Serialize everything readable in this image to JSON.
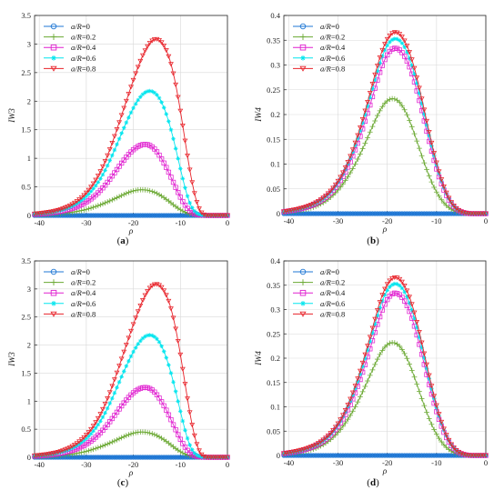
{
  "figure": {
    "panels": [
      {
        "id": "a",
        "caption": "(a)",
        "caption_letter": "a"
      },
      {
        "id": "b",
        "caption": "(b)",
        "caption_letter": "b"
      },
      {
        "id": "c",
        "caption": "(c)",
        "caption_letter": "c"
      },
      {
        "id": "d",
        "caption": "(d)",
        "caption_letter": "d"
      }
    ]
  },
  "colors": {
    "aR0": "#1f77d4",
    "aR02": "#6aa832",
    "aR04": "#e020d0",
    "aR06": "#00e5ee",
    "aR08": "#e8232a",
    "grid": "#d9d9d9",
    "axis": "#262626"
  },
  "chart_data": [
    {
      "panel": "a",
      "type": "line",
      "xlabel": "ρ",
      "ylabel": "IW3",
      "xlim": [
        -41,
        0
      ],
      "ylim": [
        0,
        3.5
      ],
      "xticks": [
        -40,
        -30,
        -20,
        -10,
        0
      ],
      "yticks": [
        0,
        0.5,
        1,
        1.5,
        2,
        2.5,
        3,
        3.5
      ],
      "xtick_labels": [
        "-40",
        "-30",
        "-20",
        "-10",
        "0"
      ],
      "ytick_labels": [
        "0",
        "0.5",
        "1",
        "1.5",
        "2",
        "2.5",
        "3",
        "3.5"
      ],
      "grid": true,
      "legend_position": "top-left",
      "x": [
        -41,
        -38,
        -35,
        -32,
        -29,
        -26,
        -23,
        -20,
        -18,
        -16,
        -14,
        -12,
        -10,
        -8,
        -6,
        -4,
        -2,
        0
      ],
      "series": [
        {
          "name": "a/R=0",
          "name_italic": "a/R",
          "name_rest": "=0",
          "marker": "circle",
          "color_key": "aR0",
          "values": [
            0,
            0,
            0,
            0,
            0,
            0,
            0,
            0,
            0,
            0,
            0,
            0,
            0,
            0,
            0,
            0,
            0,
            0
          ]
        },
        {
          "name": "a/R=0.2",
          "name_italic": "a/R",
          "name_rest": "=0.2",
          "marker": "plus",
          "color_key": "aR02",
          "values": [
            0.01,
            0.02,
            0.04,
            0.07,
            0.13,
            0.22,
            0.33,
            0.43,
            0.45,
            0.42,
            0.34,
            0.22,
            0.1,
            0.03,
            0.005,
            0,
            0,
            0
          ]
        },
        {
          "name": "a/R=0.4",
          "name_italic": "a/R",
          "name_rest": "=0.4",
          "marker": "square",
          "color_key": "aR04",
          "values": [
            0.02,
            0.04,
            0.08,
            0.15,
            0.29,
            0.53,
            0.86,
            1.15,
            1.24,
            1.2,
            0.99,
            0.67,
            0.32,
            0.08,
            0.01,
            0,
            0,
            0
          ]
        },
        {
          "name": "a/R=0.6",
          "name_italic": "a/R",
          "name_rest": "=0.6",
          "marker": "star",
          "color_key": "aR06",
          "values": [
            0.03,
            0.05,
            0.1,
            0.21,
            0.42,
            0.79,
            1.34,
            1.88,
            2.12,
            2.17,
            1.98,
            1.5,
            0.82,
            0.22,
            0.02,
            0,
            0,
            0
          ]
        },
        {
          "name": "a/R=0.8",
          "name_italic": "a/R",
          "name_rest": "=0.8",
          "marker": "triangle-down",
          "color_key": "aR08",
          "values": [
            0.03,
            0.06,
            0.12,
            0.25,
            0.5,
            0.95,
            1.63,
            2.37,
            2.8,
            3.06,
            3.03,
            2.65,
            1.83,
            0.8,
            0.12,
            0,
            0,
            0
          ]
        }
      ]
    },
    {
      "panel": "b",
      "type": "line",
      "xlabel": "ρ",
      "ylabel": "IW4",
      "xlim": [
        -41,
        0
      ],
      "ylim": [
        0,
        0.4
      ],
      "xticks": [
        -40,
        -30,
        -20,
        -10,
        0
      ],
      "yticks": [
        0,
        0.05,
        0.1,
        0.15,
        0.2,
        0.25,
        0.3,
        0.35,
        0.4
      ],
      "xtick_labels": [
        "-40",
        "-30",
        "-20",
        "-10",
        "0"
      ],
      "ytick_labels": [
        "0",
        "0.05",
        "0.1",
        "0.15",
        "0.2",
        "0.25",
        "0.3",
        "0.35",
        "0.4"
      ],
      "grid": true,
      "legend_position": "top-left",
      "x": [
        -41,
        -38,
        -35,
        -32,
        -29,
        -26,
        -23,
        -21,
        -19,
        -17,
        -15,
        -13,
        -11,
        -9,
        -7,
        -5,
        -3,
        0
      ],
      "series": [
        {
          "name": "a/R=0",
          "name_italic": "a/R",
          "name_rest": "=0",
          "marker": "circle",
          "color_key": "aR0",
          "values": [
            0,
            0,
            0,
            0,
            0,
            0,
            0,
            0,
            0,
            0,
            0,
            0,
            0,
            0,
            0,
            0,
            0,
            0
          ]
        },
        {
          "name": "a/R=0.2",
          "name_italic": "a/R",
          "name_rest": "=0.2",
          "marker": "plus",
          "color_key": "aR02",
          "values": [
            0.003,
            0.006,
            0.013,
            0.029,
            0.06,
            0.11,
            0.176,
            0.216,
            0.232,
            0.218,
            0.175,
            0.117,
            0.064,
            0.028,
            0.009,
            0.002,
            0,
            0
          ]
        },
        {
          "name": "a/R=0.4",
          "name_italic": "a/R",
          "name_rest": "=0.4",
          "marker": "square",
          "color_key": "aR04",
          "values": [
            0.004,
            0.009,
            0.018,
            0.037,
            0.075,
            0.142,
            0.236,
            0.299,
            0.332,
            0.325,
            0.282,
            0.208,
            0.126,
            0.06,
            0.02,
            0.004,
            0,
            0
          ]
        },
        {
          "name": "a/R=0.6",
          "name_italic": "a/R",
          "name_rest": "=0.6",
          "marker": "star",
          "color_key": "aR06",
          "values": [
            0.004,
            0.009,
            0.019,
            0.039,
            0.08,
            0.152,
            0.252,
            0.318,
            0.351,
            0.344,
            0.299,
            0.222,
            0.137,
            0.066,
            0.022,
            0.004,
            0,
            0
          ]
        },
        {
          "name": "a/R=0.8",
          "name_italic": "a/R",
          "name_rest": "=0.8",
          "marker": "triangle-down",
          "color_key": "aR08",
          "values": [
            0.004,
            0.01,
            0.02,
            0.041,
            0.083,
            0.158,
            0.262,
            0.33,
            0.364,
            0.357,
            0.311,
            0.232,
            0.143,
            0.069,
            0.023,
            0.004,
            0,
            0
          ]
        }
      ]
    },
    {
      "panel": "c",
      "type": "line",
      "xlabel": "ρ",
      "ylabel": "IW3",
      "xlim": [
        -41,
        0
      ],
      "ylim": [
        0,
        3.5
      ],
      "xticks": [
        -40,
        -30,
        -20,
        -10,
        0
      ],
      "yticks": [
        0,
        0.5,
        1,
        1.5,
        2,
        2.5,
        3,
        3.5
      ],
      "xtick_labels": [
        "-40",
        "-30",
        "-20",
        "-10",
        "0"
      ],
      "ytick_labels": [
        "0",
        "0.5",
        "1",
        "1.5",
        "2",
        "2.5",
        "3",
        "3.5"
      ],
      "grid": true,
      "legend_position": "top-left",
      "x": [
        -41,
        -38,
        -35,
        -32,
        -29,
        -26,
        -23,
        -20,
        -18,
        -16,
        -14,
        -12,
        -10,
        -8,
        -6,
        -4,
        -2,
        0
      ],
      "series": [
        {
          "name": "a/R=0",
          "name_italic": "a/R",
          "name_rest": "=0",
          "marker": "circle",
          "color_key": "aR0",
          "values": [
            0,
            0,
            0,
            0,
            0,
            0,
            0,
            0,
            0,
            0,
            0,
            0,
            0,
            0,
            0,
            0,
            0,
            0
          ]
        },
        {
          "name": "a/R=0.2",
          "name_italic": "a/R",
          "name_rest": "=0.2",
          "marker": "plus",
          "color_key": "aR02",
          "values": [
            0.01,
            0.02,
            0.04,
            0.07,
            0.13,
            0.22,
            0.33,
            0.43,
            0.45,
            0.42,
            0.34,
            0.22,
            0.1,
            0.03,
            0.005,
            0,
            0,
            0
          ]
        },
        {
          "name": "a/R=0.4",
          "name_italic": "a/R",
          "name_rest": "=0.4",
          "marker": "square",
          "color_key": "aR04",
          "values": [
            0.02,
            0.04,
            0.08,
            0.15,
            0.29,
            0.53,
            0.86,
            1.15,
            1.24,
            1.2,
            0.99,
            0.67,
            0.32,
            0.08,
            0.01,
            0,
            0,
            0
          ]
        },
        {
          "name": "a/R=0.6",
          "name_italic": "a/R",
          "name_rest": "=0.6",
          "marker": "star",
          "color_key": "aR06",
          "values": [
            0.03,
            0.05,
            0.1,
            0.21,
            0.42,
            0.79,
            1.34,
            1.88,
            2.12,
            2.17,
            1.98,
            1.5,
            0.82,
            0.22,
            0.02,
            0,
            0,
            0
          ]
        },
        {
          "name": "a/R=0.8",
          "name_italic": "a/R",
          "name_rest": "=0.8",
          "marker": "triangle-down",
          "color_key": "aR08",
          "values": [
            0.03,
            0.06,
            0.12,
            0.25,
            0.5,
            0.95,
            1.63,
            2.37,
            2.8,
            3.06,
            3.03,
            2.65,
            1.83,
            0.8,
            0.12,
            0,
            0,
            0
          ]
        }
      ]
    },
    {
      "panel": "d",
      "type": "line",
      "xlabel": "ρ",
      "ylabel": "IW4",
      "xlim": [
        -41,
        0
      ],
      "ylim": [
        0,
        0.4
      ],
      "xticks": [
        -40,
        -30,
        -20,
        -10,
        0
      ],
      "yticks": [
        0,
        0.05,
        0.1,
        0.15,
        0.2,
        0.25,
        0.3,
        0.35,
        0.4
      ],
      "xtick_labels": [
        "-40",
        "-30",
        "-20",
        "-10",
        "0"
      ],
      "ytick_labels": [
        "0",
        "0.05",
        "0.1",
        "0.15",
        "0.2",
        "0.25",
        "0.3",
        "0.35",
        "0.4"
      ],
      "grid": true,
      "legend_position": "top-left",
      "x": [
        -41,
        -38,
        -35,
        -32,
        -29,
        -26,
        -23,
        -21,
        -19,
        -17,
        -15,
        -13,
        -11,
        -9,
        -7,
        -5,
        -3,
        0
      ],
      "series": [
        {
          "name": "a/R=0",
          "name_italic": "a/R",
          "name_rest": "=0",
          "marker": "circle",
          "color_key": "aR0",
          "values": [
            0,
            0,
            0,
            0,
            0,
            0,
            0,
            0,
            0,
            0,
            0,
            0,
            0,
            0,
            0,
            0,
            0,
            0
          ]
        },
        {
          "name": "a/R=0.2",
          "name_italic": "a/R",
          "name_rest": "=0.2",
          "marker": "plus",
          "color_key": "aR02",
          "values": [
            0.003,
            0.006,
            0.013,
            0.029,
            0.06,
            0.11,
            0.176,
            0.216,
            0.232,
            0.218,
            0.175,
            0.117,
            0.064,
            0.028,
            0.009,
            0.002,
            0,
            0
          ]
        },
        {
          "name": "a/R=0.4",
          "name_italic": "a/R",
          "name_rest": "=0.4",
          "marker": "square",
          "color_key": "aR04",
          "values": [
            0.004,
            0.009,
            0.018,
            0.037,
            0.075,
            0.142,
            0.236,
            0.299,
            0.332,
            0.325,
            0.282,
            0.208,
            0.126,
            0.06,
            0.02,
            0.004,
            0,
            0
          ]
        },
        {
          "name": "a/R=0.6",
          "name_italic": "a/R",
          "name_rest": "=0.6",
          "marker": "star",
          "color_key": "aR06",
          "values": [
            0.004,
            0.009,
            0.019,
            0.039,
            0.08,
            0.152,
            0.252,
            0.318,
            0.351,
            0.344,
            0.299,
            0.222,
            0.137,
            0.066,
            0.022,
            0.004,
            0,
            0
          ]
        },
        {
          "name": "a/R=0.8",
          "name_italic": "a/R",
          "name_rest": "=0.8",
          "marker": "triangle-down",
          "color_key": "aR08",
          "values": [
            0.004,
            0.01,
            0.02,
            0.041,
            0.083,
            0.158,
            0.262,
            0.33,
            0.364,
            0.357,
            0.311,
            0.232,
            0.143,
            0.069,
            0.023,
            0.004,
            0,
            0
          ]
        }
      ]
    }
  ]
}
